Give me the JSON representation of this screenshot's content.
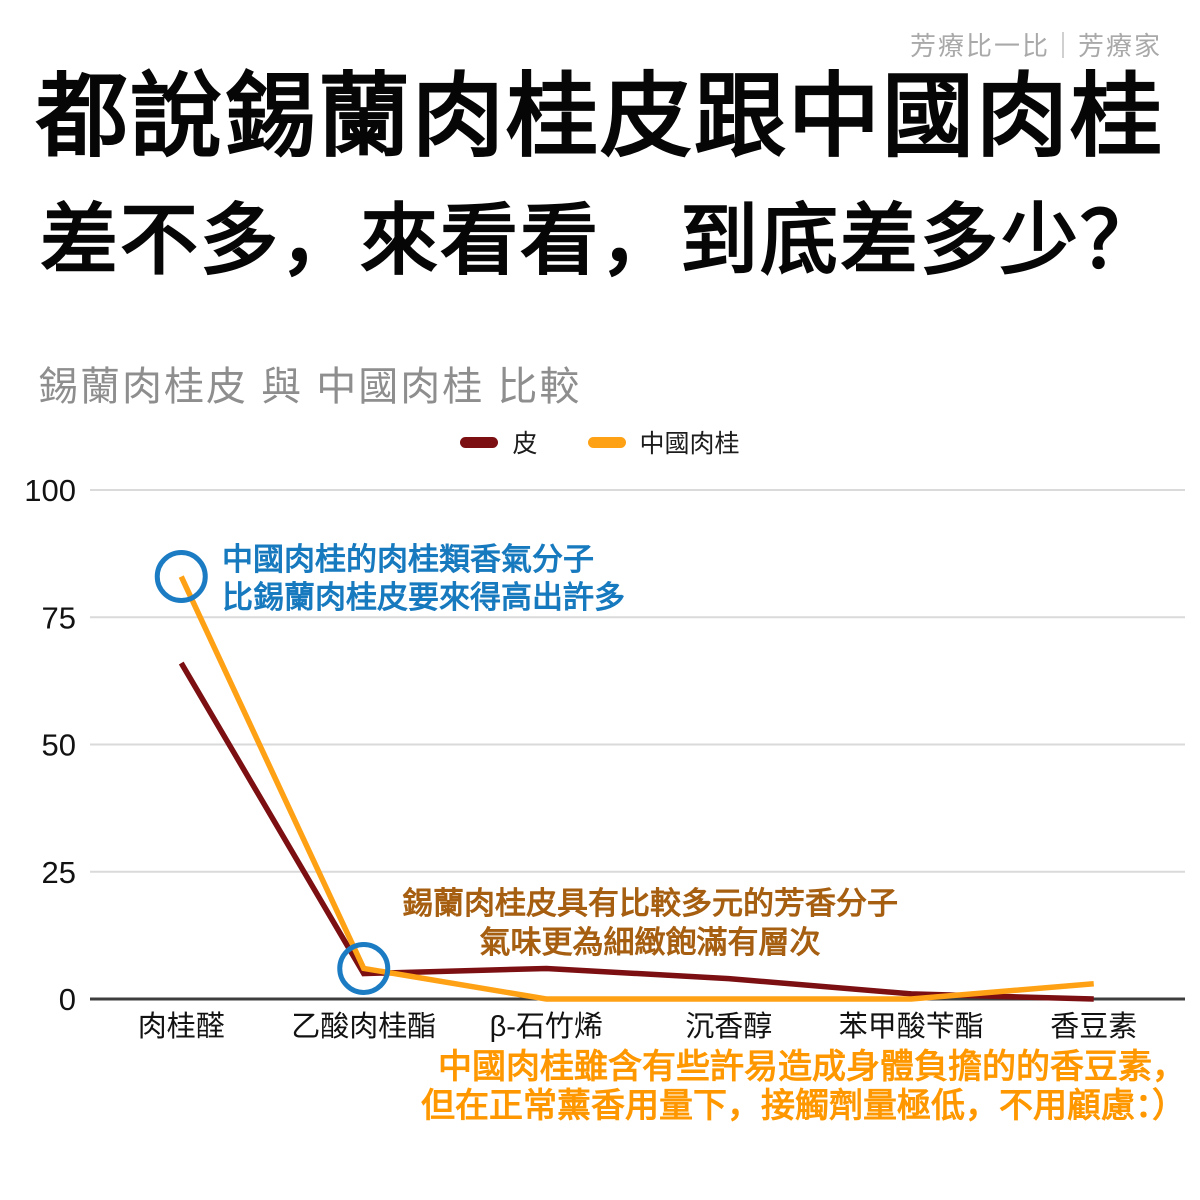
{
  "watermark": "芳療比一比｜芳療家",
  "headline": {
    "line1": "都說錫蘭肉桂皮跟中國肉桂",
    "line2": "差不多，來看看，到底差多少？"
  },
  "chart_title": "錫蘭肉桂皮 與 中國肉桂 比較",
  "chart_data": {
    "type": "line",
    "categories": [
      "肉桂醛",
      "乙酸肉桂酯",
      "β-石竹烯",
      "沉香醇",
      "苯甲酸苄酯",
      "香豆素"
    ],
    "series": [
      {
        "name": "皮",
        "color": "#7b0f12",
        "values": [
          66,
          5,
          6,
          4,
          1,
          0
        ]
      },
      {
        "name": "中國肉桂",
        "color": "#ffa115",
        "values": [
          83,
          6,
          0,
          0,
          0,
          3
        ]
      }
    ],
    "title": "錫蘭肉桂皮 與 中國肉桂 比較",
    "xlabel": "",
    "ylabel": "",
    "ylim": [
      0,
      100
    ],
    "yticks": [
      0,
      25,
      50,
      75,
      100
    ],
    "grid": true,
    "legend_position": "top"
  },
  "annotations": {
    "marker_color": "#1b7cc4",
    "blue": {
      "color": "#1779be",
      "line1": "中國肉桂的肉桂類香氣分子",
      "line2": "比錫蘭肉桂皮要來得高出許多"
    },
    "mid": {
      "color": "#a65e10",
      "line1": "錫蘭肉桂皮具有比較多元的芳香分子",
      "line2": "氣味更為細緻飽滿有層次"
    },
    "bottom": {
      "color": "#ff9800",
      "line1": "中國肉桂雖含有些許易造成身體負擔的的香豆素，",
      "line2": "但在正常薰香用量下，接觸劑量極低，不用顧慮：）"
    }
  }
}
